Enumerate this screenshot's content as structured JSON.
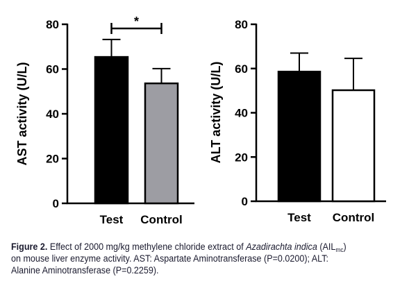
{
  "chart_data": [
    {
      "type": "bar",
      "categories": [
        "Test",
        "Control"
      ],
      "values": [
        65.4,
        53.6
      ],
      "error": [
        7.8,
        6.6
      ],
      "ylabel": "AST activity (U/L)",
      "ylim": [
        0,
        80
      ],
      "yticks": [
        0,
        20,
        40,
        60,
        80
      ],
      "significance": {
        "between": [
          "Test",
          "Control"
        ],
        "label": "*"
      },
      "bar_colors": [
        "#000000",
        "#9d9da3"
      ]
    },
    {
      "type": "bar",
      "categories": [
        "Test",
        "Control"
      ],
      "values": [
        58.6,
        50.2
      ],
      "error": [
        8.4,
        14.4
      ],
      "ylabel": "ALT activity (U/L)",
      "ylim": [
        0,
        80
      ],
      "yticks": [
        0,
        20,
        40,
        60,
        80
      ],
      "bar_colors": [
        "#000000",
        "#ffffff"
      ]
    }
  ],
  "caption": {
    "label": "Figure 2.",
    "part1": " Effect of 2000 mg/kg methylene chloride extract of ",
    "species": "Azadirachta indica",
    "part2": " (AIL",
    "subscript": "mc",
    "part3": ")",
    "line2": "on mouse liver enzyme activity. AST: Aspartate Aminotransferase (P=0.0200); ALT:",
    "line3": "Alanine Aminotransferase (P=0.2259)."
  }
}
